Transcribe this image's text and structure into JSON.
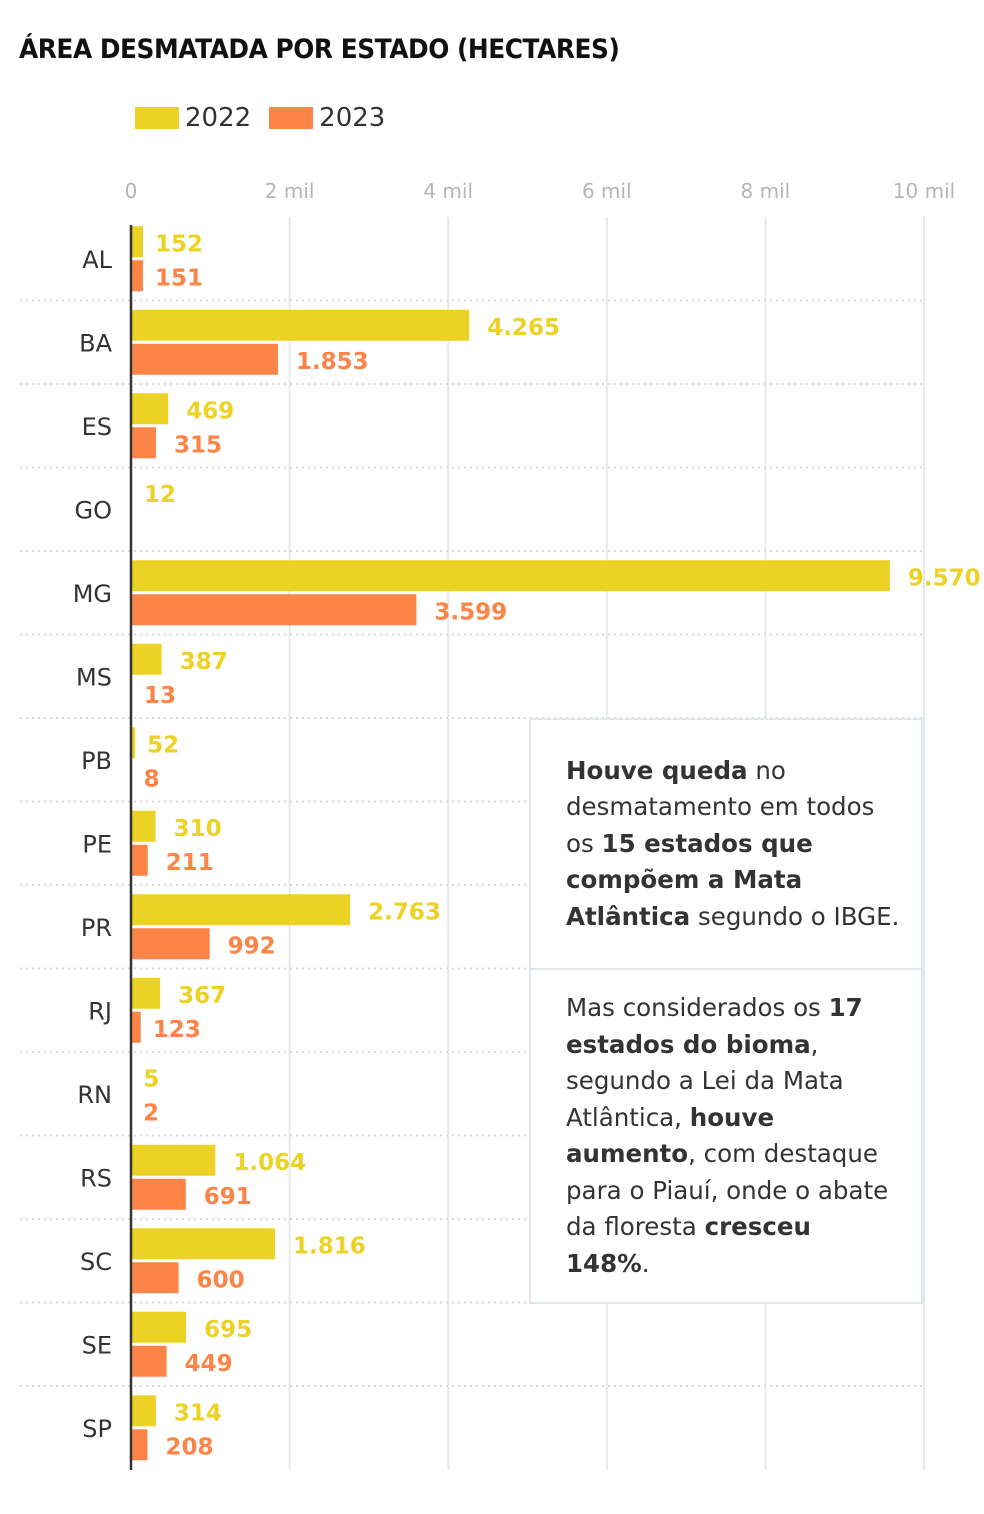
{
  "chart_data": {
    "type": "bar",
    "orientation": "horizontal",
    "title": "ÁREA DESMATADA POR ESTADO (HECTARES)",
    "xlabel": "",
    "ylabel": "",
    "xlim": [
      0,
      10000
    ],
    "x_ticks": [
      0,
      2000,
      4000,
      6000,
      8000,
      10000
    ],
    "x_tick_labels": [
      "0",
      "2 mil",
      "4 mil",
      "6 mil",
      "8 mil",
      "10 mil"
    ],
    "grid": true,
    "legend_position": "top-left",
    "categories": [
      "AL",
      "BA",
      "ES",
      "GO",
      "MG",
      "MS",
      "PB",
      "PE",
      "PR",
      "RJ",
      "RN",
      "RS",
      "SC",
      "SE",
      "SP"
    ],
    "series": [
      {
        "name": "2022",
        "color": "#EDD226",
        "values": [
          152,
          4265,
          469,
          12,
          9570,
          387,
          52,
          310,
          2763,
          367,
          5,
          1064,
          1816,
          695,
          314
        ],
        "labels": [
          "152",
          "4.265",
          "469",
          "12",
          "9.570",
          "387",
          "52",
          "310",
          "2.763",
          "367",
          "5",
          "1.064",
          "1.816",
          "695",
          "314"
        ]
      },
      {
        "name": "2023",
        "color": "#FC8447",
        "values": [
          151,
          1853,
          315,
          null,
          3599,
          13,
          8,
          211,
          992,
          123,
          2,
          691,
          600,
          449,
          208
        ],
        "labels": [
          "151",
          "1.853",
          "315",
          "",
          "3.599",
          "13",
          "8",
          "211",
          "992",
          "123",
          "2",
          "691",
          "600",
          "449",
          "208"
        ]
      }
    ]
  },
  "legend": [
    {
      "label": "2022",
      "color": "#EDD226"
    },
    {
      "label": "2023",
      "color": "#FC8447"
    }
  ],
  "annotations": [
    {
      "parts": [
        {
          "text": "Houve queda",
          "bold": true
        },
        {
          "text": " no desmatamento em todos os ",
          "bold": false
        },
        {
          "text": "15 estados que compõem a Mata Atlântica",
          "bold": true
        },
        {
          "text": " segundo o IBGE.",
          "bold": false
        }
      ]
    },
    {
      "parts": [
        {
          "text": "Mas considerados os ",
          "bold": false
        },
        {
          "text": "17 estados do bioma",
          "bold": true
        },
        {
          "text": ", segundo a Lei da Mata Atlântica, ",
          "bold": false
        },
        {
          "text": "houve aumento",
          "bold": true
        },
        {
          "text": ", com destaque para o Piauí, onde o abate da floresta ",
          "bold": false
        },
        {
          "text": "cresceu 148%",
          "bold": true
        },
        {
          "text": ".",
          "bold": false
        }
      ]
    }
  ]
}
